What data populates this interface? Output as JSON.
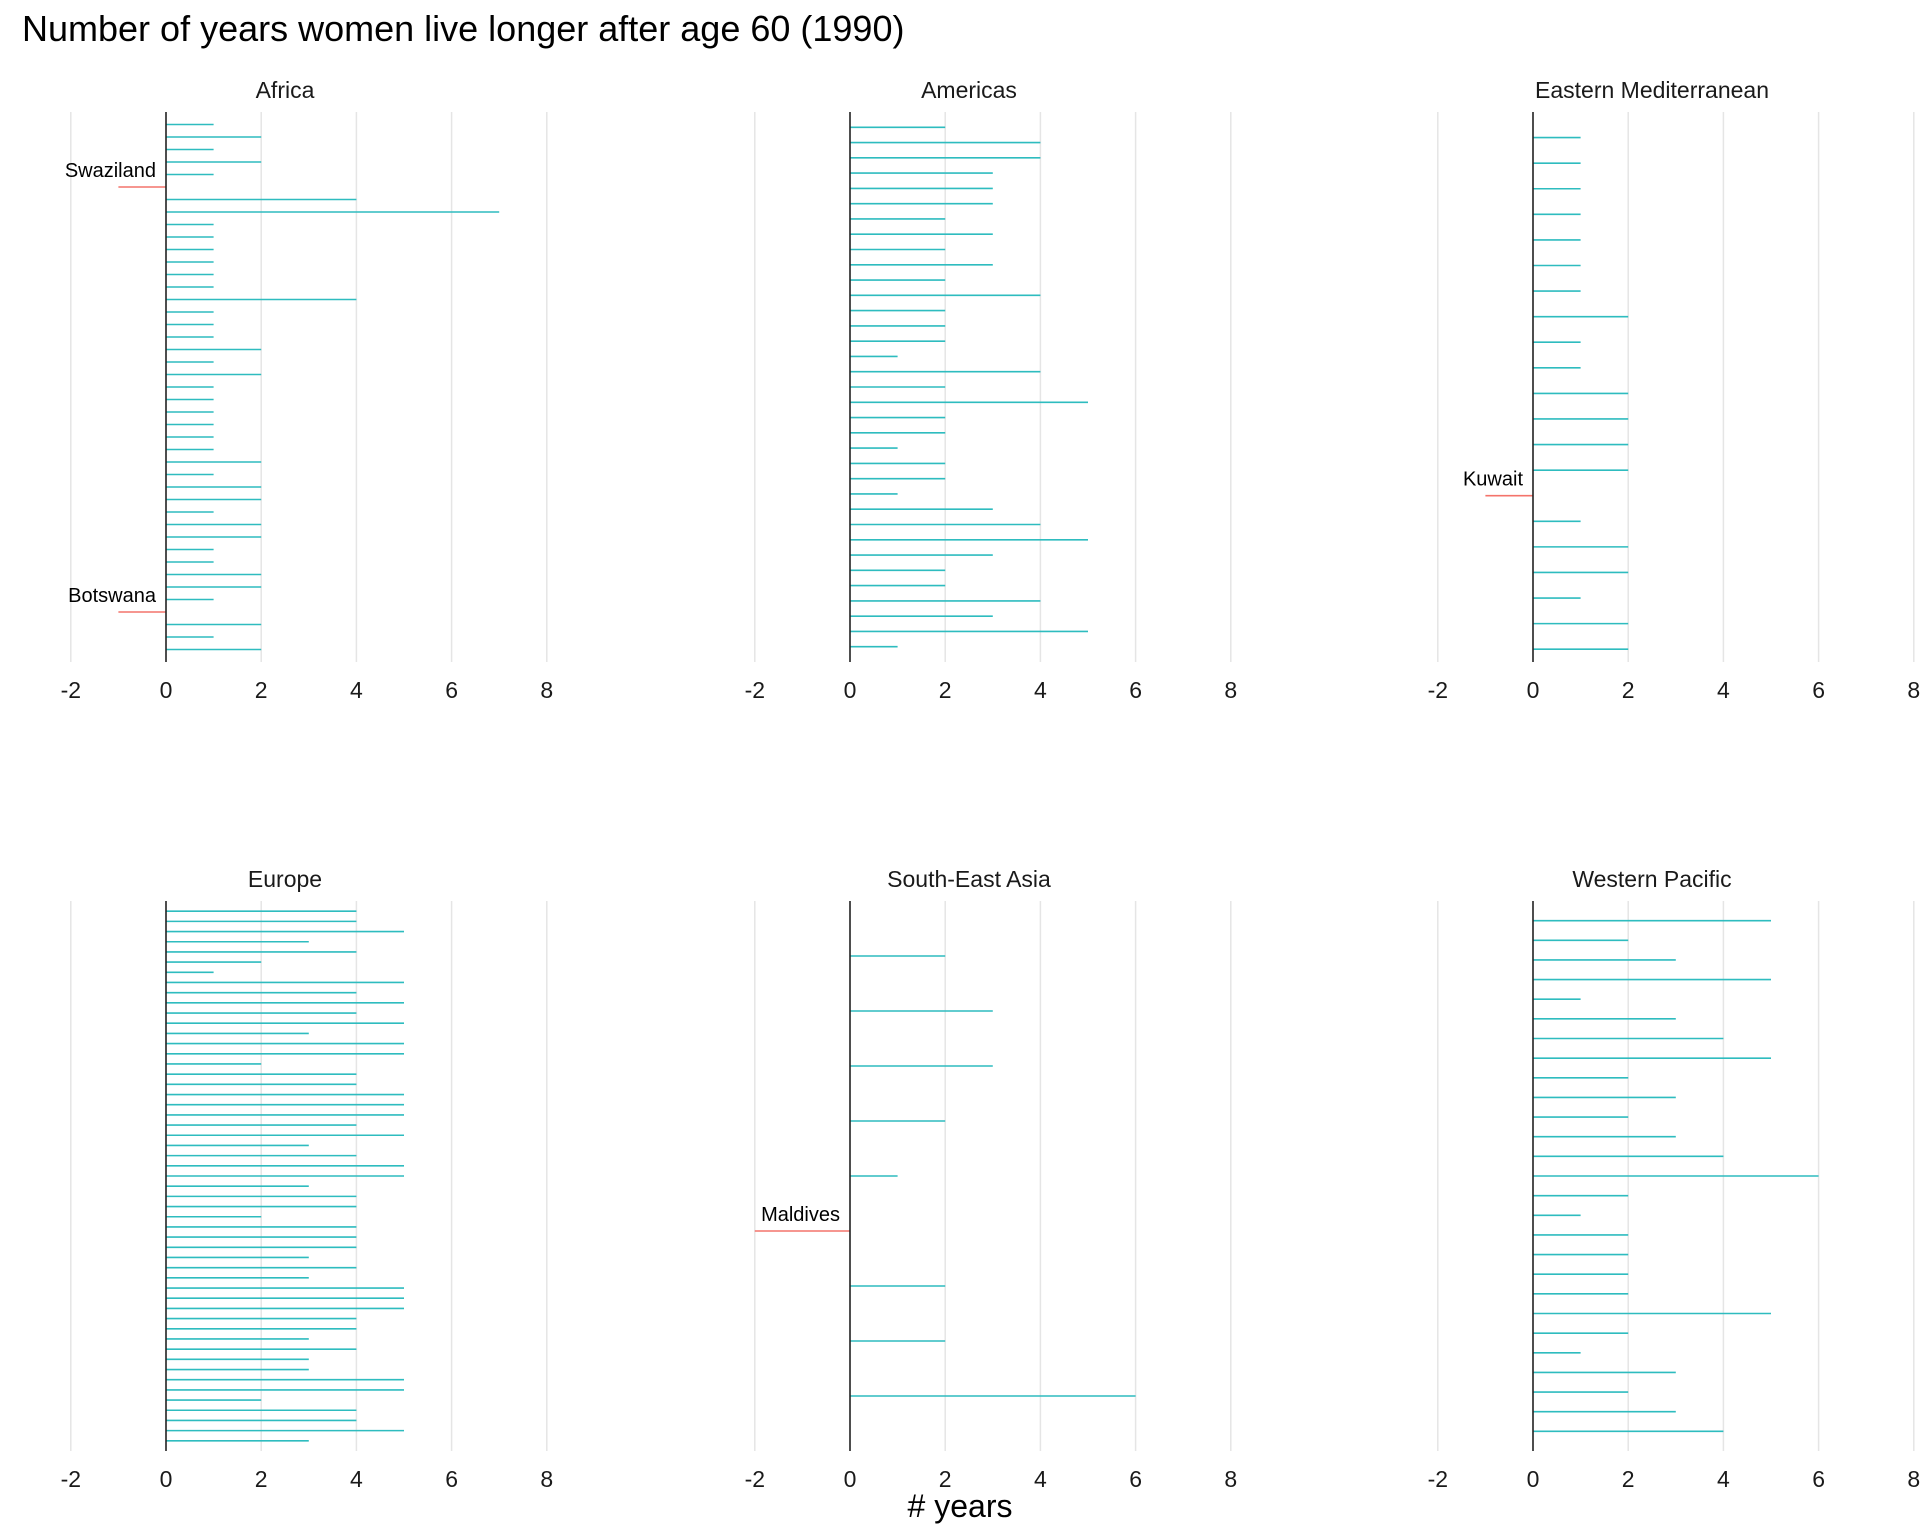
{
  "chart_data": {
    "type": "bar",
    "orientation": "horizontal",
    "title": "Number of years women live longer after age 60 (1990)",
    "xlabel": "# years",
    "ylabel": "",
    "xlim": [
      -2,
      8
    ],
    "xticks": [
      -2,
      0,
      2,
      4,
      6,
      8
    ],
    "grid": true,
    "legend": "none",
    "colors": {
      "positive": "#2EBCBF",
      "negative": "#F4736B",
      "zero_line": "#222222",
      "grid": "#E5E5E5"
    },
    "panels": [
      {
        "name": "Africa",
        "values": [
          1,
          2,
          1,
          2,
          1,
          -1,
          4,
          7,
          1,
          1,
          1,
          1,
          1,
          1,
          4,
          1,
          1,
          1,
          2,
          1,
          2,
          1,
          1,
          1,
          1,
          1,
          1,
          2,
          1,
          2,
          2,
          1,
          2,
          2,
          1,
          1,
          2,
          2,
          1,
          -1,
          2,
          1,
          2
        ],
        "labels": [
          {
            "index": 5,
            "text": "Swaziland"
          },
          {
            "index": 39,
            "text": "Botswana"
          }
        ]
      },
      {
        "name": "Americas",
        "values": [
          2,
          4,
          4,
          3,
          3,
          3,
          2,
          3,
          2,
          3,
          2,
          4,
          2,
          2,
          2,
          1,
          4,
          2,
          5,
          2,
          2,
          1,
          2,
          2,
          1,
          3,
          4,
          5,
          3,
          2,
          2,
          4,
          3,
          5,
          1
        ],
        "labels": []
      },
      {
        "name": "Eastern Mediterranean",
        "values": [
          null,
          1,
          null,
          1,
          null,
          1,
          null,
          1,
          null,
          1,
          null,
          1,
          null,
          1,
          null,
          2,
          null,
          1,
          null,
          1,
          null,
          2,
          null,
          2,
          null,
          2,
          null,
          2,
          null,
          -1,
          null,
          1,
          null,
          2,
          null,
          2,
          null,
          1,
          null,
          2,
          null,
          2
        ],
        "labels": [
          {
            "index": 29,
            "text": "Kuwait"
          }
        ]
      },
      {
        "name": "Europe",
        "values": [
          4,
          4,
          5,
          3,
          4,
          2,
          1,
          5,
          4,
          5,
          4,
          5,
          3,
          5,
          5,
          2,
          4,
          4,
          5,
          5,
          5,
          4,
          5,
          3,
          4,
          5,
          5,
          3,
          4,
          4,
          2,
          4,
          4,
          4,
          3,
          4,
          3,
          5,
          5,
          5,
          4,
          4,
          3,
          4,
          3,
          3,
          5,
          5,
          2,
          4,
          4,
          5,
          3
        ],
        "labels": []
      },
      {
        "name": "South-East Asia",
        "values": [
          2,
          3,
          3,
          2,
          1,
          -2,
          2,
          2,
          6
        ],
        "labels": [
          {
            "index": 5,
            "text": "Maldives"
          }
        ]
      },
      {
        "name": "Western Pacific",
        "values": [
          5,
          2,
          3,
          5,
          1,
          3,
          4,
          5,
          2,
          3,
          2,
          3,
          4,
          6,
          2,
          1,
          2,
          2,
          2,
          2,
          5,
          2,
          1,
          3,
          2,
          3,
          4
        ],
        "labels": []
      }
    ]
  }
}
